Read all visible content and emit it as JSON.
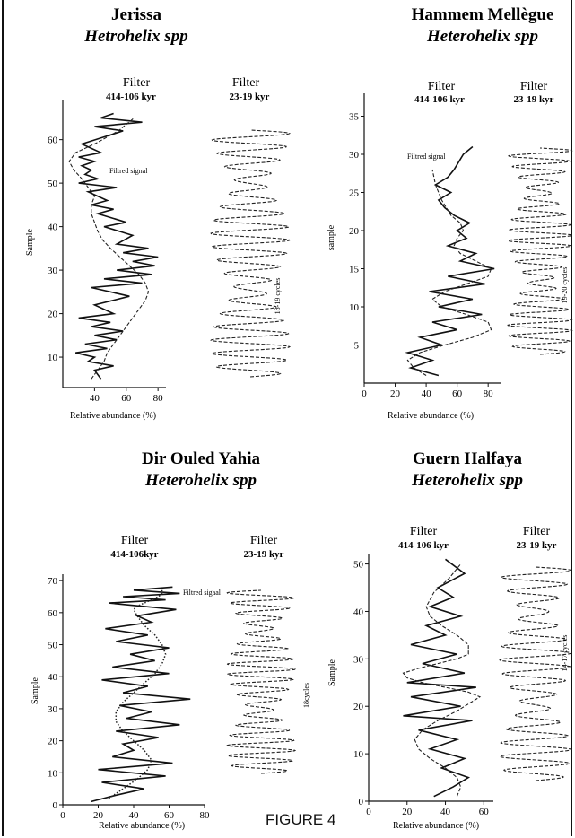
{
  "figure_label": "FIGURE 4",
  "chart_data": [
    {
      "type": "line",
      "title": "Jerissa",
      "subtitle": "Hetrohelix spp",
      "ylabel": "Sample",
      "panels": [
        {
          "title": "Filter",
          "subtitle": "414-106 kyr",
          "xlabel": "Relative abundance (%)",
          "xlim": [
            20,
            85
          ],
          "ylim": [
            3,
            69
          ],
          "x_ticks": [
            40,
            60,
            80
          ],
          "y_ticks": [
            10,
            20,
            30,
            40,
            50,
            60
          ],
          "annotation": "Filtred signal",
          "series": [
            {
              "style": "solid",
              "x": [
                44,
                40,
                52,
                36,
                40,
                28,
                48,
                34,
                54,
                40,
                58,
                38,
                50,
                30,
                52,
                40,
                62,
                38,
                70,
                46,
                76,
                54,
                78,
                64,
                80,
                58,
                74,
                54,
                64,
                46,
                60,
                42,
                52,
                38,
                48,
                36,
                54,
                30,
                42,
                34,
                38,
                32,
                40,
                30,
                44,
                32,
                58,
                40,
                70,
                44,
                52
              ],
              "y": [
                5,
                7,
                8,
                9,
                10,
                11,
                12,
                13,
                14,
                15,
                16,
                17,
                18,
                19,
                20,
                22,
                24,
                26,
                27,
                28,
                29,
                30,
                31,
                32,
                33,
                34,
                35,
                36,
                38,
                40,
                41,
                43,
                44,
                45,
                46,
                48,
                49,
                50,
                51,
                52,
                53,
                54,
                55,
                56,
                57,
                59,
                62,
                63,
                64,
                65,
                66
              ]
            },
            {
              "style": "dashed",
              "x": [
                38,
                42,
                46,
                48,
                52,
                56,
                60,
                64,
                68,
                72,
                74,
                72,
                68,
                62,
                56,
                50,
                45,
                42,
                40,
                38,
                38,
                40,
                36,
                32,
                27,
                24,
                28,
                40,
                55,
                65
              ],
              "y": [
                5,
                7,
                9,
                11,
                13,
                15,
                17,
                19,
                21,
                23,
                25,
                27,
                29,
                31,
                33,
                35,
                37,
                39,
                41,
                43,
                45,
                47,
                49,
                51,
                53,
                55,
                57,
                59,
                62,
                65
              ]
            }
          ]
        },
        {
          "title": "Filter",
          "subtitle": "23-19 kyr",
          "annotation": "18-19 cycles",
          "series": [
            {
              "style": "dashed",
              "n_cycles": 18.5,
              "y_range": [
                7,
                66
              ]
            }
          ]
        }
      ]
    },
    {
      "type": "line",
      "title": "Hammem Mellègue",
      "subtitle": "Heterohelix spp",
      "ylabel": "sample",
      "panels": [
        {
          "title": "Filter",
          "subtitle": "414-106 kyr",
          "xlabel": "Relative abundance (%)",
          "xlim": [
            0,
            88
          ],
          "ylim": [
            0,
            38
          ],
          "x_ticks": [
            0,
            20,
            40,
            60,
            80
          ],
          "y_ticks": [
            5,
            10,
            15,
            20,
            25,
            30,
            35
          ],
          "annotation": "Filtred signal",
          "series": [
            {
              "style": "solid",
              "x": [
                48,
                30,
                44,
                28,
                50,
                36,
                60,
                44,
                76,
                48,
                70,
                42,
                78,
                54,
                84,
                62,
                72,
                54,
                66,
                60,
                68,
                58,
                52,
                48,
                56,
                46,
                54,
                58,
                64,
                70
              ],
              "y": [
                1,
                2,
                3,
                4,
                5,
                6,
                7,
                8,
                9,
                10,
                11,
                12,
                13,
                14,
                15,
                16,
                17,
                18,
                19,
                20,
                21,
                22,
                23,
                24,
                25,
                26,
                27,
                28,
                30,
                31
              ]
            },
            {
              "style": "dashed",
              "x": [
                40,
                32,
                28,
                36,
                52,
                70,
                82,
                80,
                66,
                50,
                44,
                52,
                66,
                80,
                82,
                72,
                62,
                58,
                60,
                64,
                62,
                56,
                50,
                46,
                44
              ],
              "y": [
                1,
                2,
                3,
                4,
                5,
                6,
                7,
                8,
                9,
                10,
                11,
                12,
                13,
                14,
                15,
                16,
                17,
                18,
                19,
                20,
                21,
                22,
                24,
                26,
                28
              ]
            }
          ]
        },
        {
          "title": "Filter",
          "subtitle": "23-19 kyr",
          "annotation": "19-20 cycles",
          "series": [
            {
              "style": "dashed",
              "n_cycles": 19.5,
              "y_range": [
                2,
                30
              ]
            }
          ]
        }
      ]
    },
    {
      "type": "line",
      "title": "Dir Ouled Yahia",
      "subtitle": "Heterohelix spp",
      "ylabel": "Sample",
      "panels": [
        {
          "title": "Filter",
          "subtitle": "414-106kyr",
          "xlabel": "Relative abundance (%)",
          "xlim": [
            0,
            80
          ],
          "ylim": [
            0,
            72
          ],
          "x_ticks": [
            0,
            20,
            40,
            60,
            80
          ],
          "y_ticks": [
            0,
            10,
            20,
            30,
            40,
            50,
            60,
            70
          ],
          "annotation": "Filtred sigaal",
          "series": [
            {
              "style": "solid",
              "x": [
                16,
                30,
                46,
                22,
                58,
                20,
                62,
                28,
                40,
                34,
                54,
                30,
                66,
                36,
                50,
                32,
                72,
                34,
                48,
                22,
                60,
                28,
                52,
                38,
                60,
                30,
                48,
                24,
                50,
                42,
                64,
                26,
                58,
                34,
                66,
                40,
                62
              ],
              "y": [
                1,
                3,
                5,
                7,
                9,
                11,
                13,
                15,
                17,
                19,
                21,
                23,
                25,
                27,
                29,
                31,
                33,
                35,
                37,
                39,
                41,
                43,
                45,
                47,
                49,
                51,
                53,
                55,
                57,
                59,
                61,
                63,
                64,
                65,
                66,
                67,
                68
              ]
            },
            {
              "style": "dotted",
              "x": [
                26,
                34,
                42,
                48,
                50,
                46,
                40,
                34,
                30,
                30,
                34,
                40,
                46,
                52,
                56,
                58,
                56,
                52,
                46,
                42,
                40,
                42,
                46,
                50,
                54,
                56,
                56
              ],
              "y": [
                2,
                5,
                8,
                11,
                14,
                17,
                20,
                23,
                26,
                29,
                32,
                35,
                38,
                41,
                44,
                47,
                50,
                53,
                56,
                59,
                61,
                62,
                63,
                64,
                65,
                66,
                67
              ]
            }
          ]
        },
        {
          "title": "Filter",
          "subtitle": "23-19 kyr",
          "annotation": "18cycles",
          "series": [
            {
              "style": "dashed",
              "n_cycles": 18,
              "y_range": [
                3,
                66
              ]
            }
          ]
        }
      ]
    },
    {
      "type": "line",
      "title": "Guern Halfaya",
      "subtitle": "Heterohelix spp",
      "ylabel": "Sample",
      "panels": [
        {
          "title": "Filter",
          "subtitle": "414-106 kyr",
          "xlabel": "Relative abundance (%)",
          "xlim": [
            0,
            65
          ],
          "ylim": [
            0,
            52
          ],
          "x_ticks": [
            0,
            20,
            40,
            60
          ],
          "y_ticks": [
            0,
            10,
            20,
            30,
            40,
            50
          ],
          "series": [
            {
              "style": "solid",
              "x": [
                34,
                44,
                52,
                38,
                50,
                32,
                46,
                26,
                54,
                18,
                48,
                22,
                56,
                20,
                50,
                28,
                46,
                22,
                40,
                30,
                48,
                32,
                44,
                36,
                50,
                40
              ],
              "y": [
                1,
                3,
                5,
                7,
                9,
                11,
                13,
                15,
                17,
                18,
                20,
                22,
                24,
                25,
                27,
                29,
                31,
                33,
                35,
                37,
                39,
                41,
                43,
                45,
                48,
                51
              ]
            },
            {
              "style": "dashed",
              "x": [
                46,
                48,
                46,
                40,
                32,
                26,
                24,
                28,
                36,
                46,
                54,
                58,
                52,
                40,
                28,
                20,
                18,
                26,
                36,
                46,
                52,
                52,
                46,
                38,
                32,
                30,
                34,
                42,
                48
              ],
              "y": [
                1,
                3,
                5,
                7,
                9,
                11,
                13,
                15,
                17,
                19,
                21,
                22,
                23,
                24,
                25,
                26,
                27,
                28,
                29,
                30,
                31,
                33,
                35,
                37,
                39,
                41,
                44,
                47,
                50
              ]
            }
          ]
        },
        {
          "title": "Filter",
          "subtitle": "23-19 kyr",
          "annotation": "14-17 cycles",
          "series": [
            {
              "style": "dashed",
              "n_cycles": 15.5,
              "y_range": [
                3,
                51
              ]
            }
          ]
        }
      ]
    }
  ]
}
